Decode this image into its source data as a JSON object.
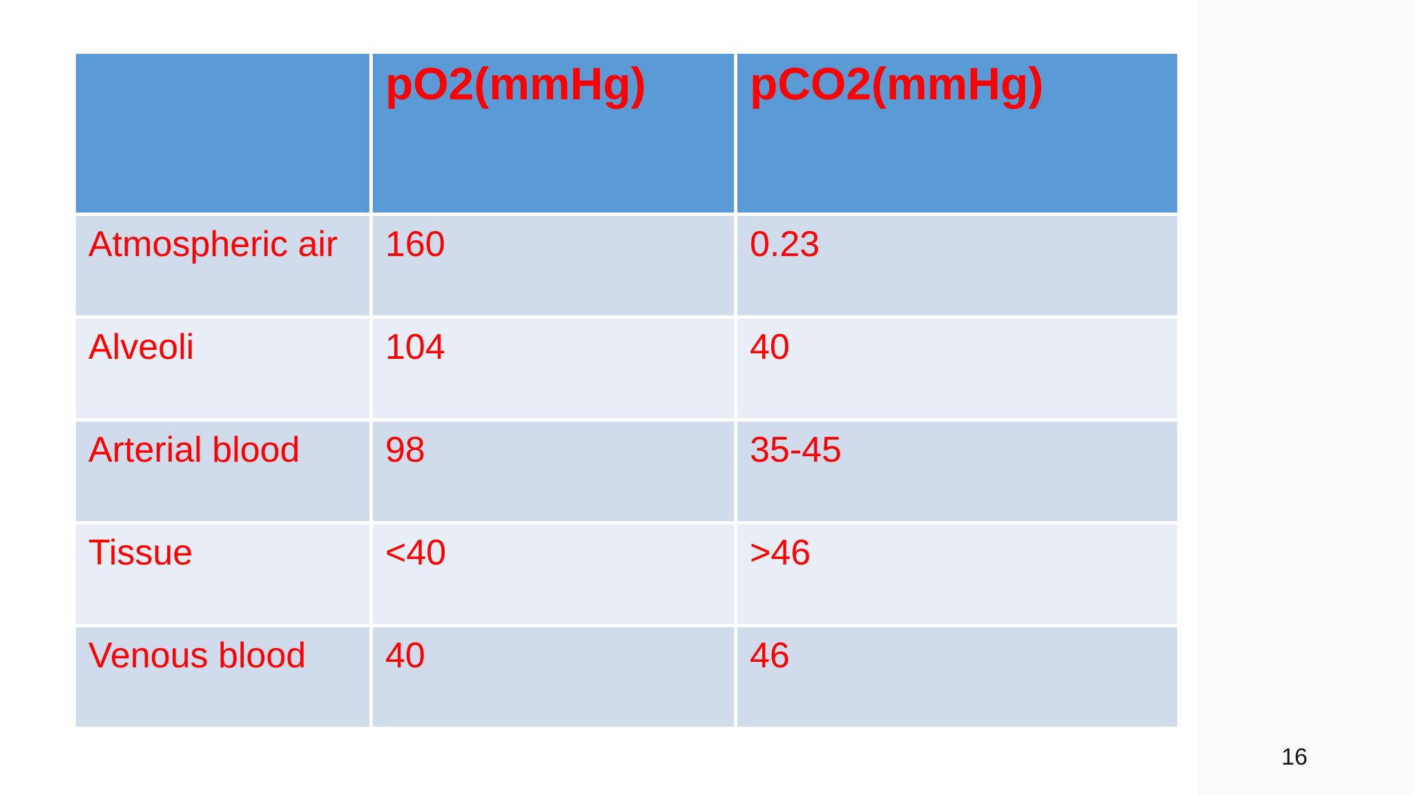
{
  "page": {
    "slide_number": "16",
    "background": "#FFFFFF"
  },
  "table": {
    "title_semantic": "partial pressures of O2 and CO2 at different sites",
    "columns": [
      {
        "label": ""
      },
      {
        "label": "pO2(mmHg)"
      },
      {
        "label": "pCO2(mmHg)"
      }
    ],
    "rows": [
      {
        "site": "Atmospheric air",
        "po2": "160",
        "pco2": "0.23"
      },
      {
        "site": "Alveoli",
        "po2": "104",
        "pco2": "40"
      },
      {
        "site": "Arterial blood",
        "po2": "98",
        "pco2": "35-45"
      },
      {
        "site": "Tissue",
        "po2": "<40",
        "pco2": ">46"
      },
      {
        "site": "Venous blood",
        "po2": "40",
        "pco2": "46"
      }
    ],
    "colors": {
      "header_bg": "#5B9BD5",
      "row_dark_bg": "#D0DCEB",
      "row_light_bg": "#E9EDF6",
      "text_red": "#FE0000",
      "divider": "#FFFFFF",
      "page_number_color": "#151515"
    }
  }
}
